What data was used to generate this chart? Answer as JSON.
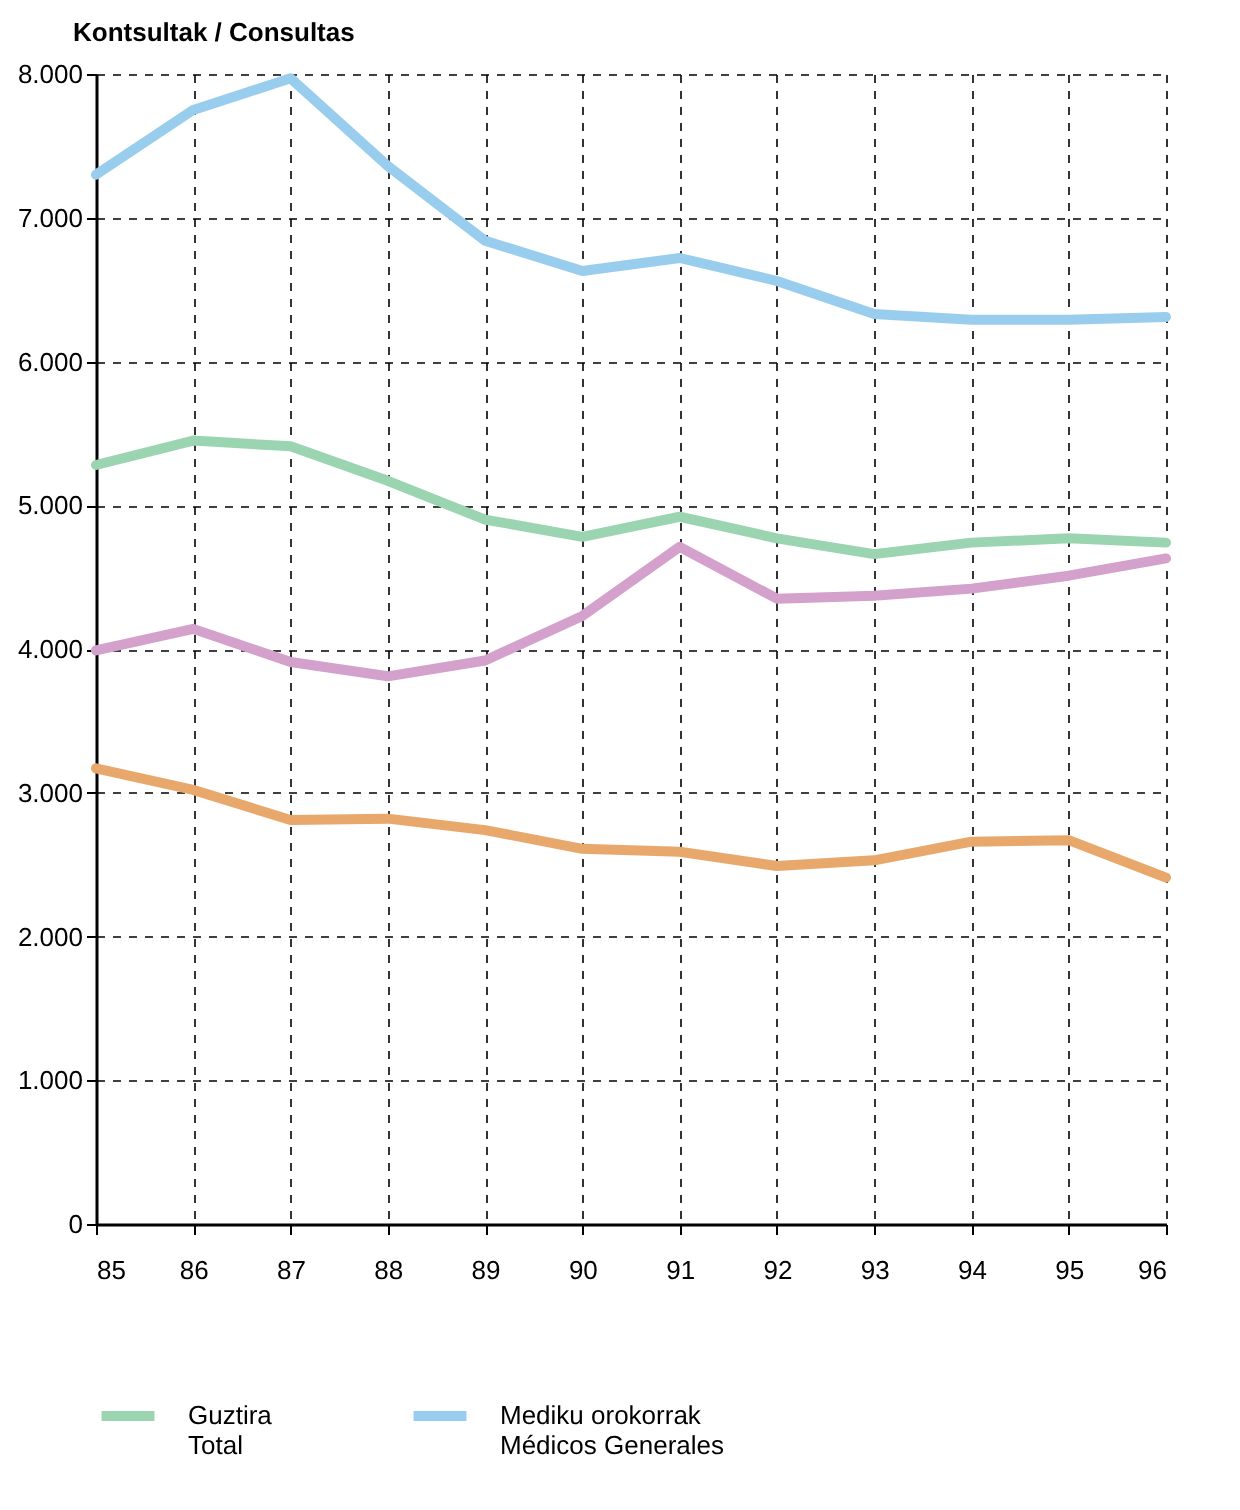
{
  "chart_data": {
    "type": "line",
    "ylabel": "Kontsultak / Consultas",
    "x": [
      85,
      86,
      87,
      88,
      89,
      90,
      91,
      92,
      93,
      94,
      95,
      96
    ],
    "xlim": [
      85,
      96
    ],
    "xticks": [
      85,
      86,
      87,
      88,
      89,
      90,
      91,
      92,
      93,
      94,
      95,
      96
    ],
    "ylim": [
      0,
      8000
    ],
    "yticks": [
      0,
      {
        "value": 1000,
        "label": "1.000"
      },
      {
        "value": 2000,
        "label": "2.000"
      },
      {
        "value": 3000,
        "label": "3.000"
      },
      {
        "value": 4000,
        "label": "4.000"
      },
      {
        "value": 5000,
        "label": "5.000"
      },
      {
        "value": 6000,
        "label": "6.000"
      },
      {
        "value": 7000,
        "label": "7.000"
      },
      {
        "value": 8000,
        "label": "8.000"
      }
    ],
    "grid": true,
    "legend": "bottom",
    "line_style": "solid",
    "marker": "none",
    "series": [
      {
        "name": "Guztira\nTotal",
        "color": "#9bd4b0",
        "values": [
          5280,
          5450,
          5410,
          5170,
          4900,
          4780,
          4920,
          4770,
          4660,
          4740,
          4770,
          4740
        ]
      },
      {
        "name": "Mediku orokorrak\nMédicos Generales",
        "color": "#99cdee",
        "values": [
          7300,
          7750,
          7970,
          7360,
          6840,
          6630,
          6720,
          6560,
          6330,
          6290,
          6290,
          6310
        ]
      },
      {
        "color": "#d4a0cc",
        "values": [
          3990,
          4140,
          3910,
          3810,
          3920,
          4230,
          4710,
          4350,
          4370,
          4420,
          4510,
          4630
        ]
      },
      {
        "color": "#e8a86c",
        "values": [
          3170,
          3020,
          2810,
          2820,
          2740,
          2610,
          2590,
          2490,
          2530,
          2660,
          2670,
          2410
        ]
      }
    ]
  }
}
